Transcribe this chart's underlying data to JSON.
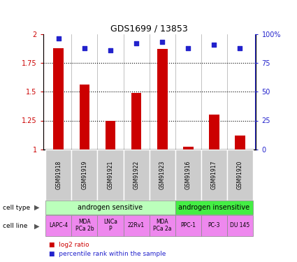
{
  "title": "GDS1699 / 13853",
  "samples": [
    "GSM91918",
    "GSM91919",
    "GSM91921",
    "GSM91922",
    "GSM91923",
    "GSM91916",
    "GSM91917",
    "GSM91920"
  ],
  "log2_ratio": [
    1.88,
    1.56,
    1.25,
    1.49,
    1.87,
    1.02,
    1.3,
    1.12
  ],
  "percentile_rank": [
    96,
    88,
    86,
    92,
    93,
    88,
    91,
    88
  ],
  "ylim_left": [
    1.0,
    2.0
  ],
  "ylim_right": [
    0,
    100
  ],
  "yticks_left": [
    1.0,
    1.25,
    1.5,
    1.75,
    2.0
  ],
  "ytick_labels_left": [
    "1",
    "1.25",
    "1.5",
    "1.75",
    "2"
  ],
  "yticks_right": [
    0,
    25,
    50,
    75,
    100
  ],
  "ytick_labels_right": [
    "0",
    "25",
    "50",
    "75",
    "100%"
  ],
  "bar_color": "#cc0000",
  "square_color": "#2222cc",
  "cell_type_groups": [
    {
      "label": "androgen sensitive",
      "start": 0,
      "end": 4,
      "color": "#bbffbb"
    },
    {
      "label": "androgen insensitive",
      "start": 5,
      "end": 7,
      "color": "#44ee44"
    }
  ],
  "cell_lines": [
    "LAPC-4",
    "MDA\nPCa 2b",
    "LNCa\nP",
    "22Rv1",
    "MDA\nPCa 2a",
    "PPC-1",
    "PC-3",
    "DU 145"
  ],
  "cell_line_color": "#ee88ee",
  "sample_box_color": "#cccccc",
  "legend_red": "log2 ratio",
  "legend_blue": "percentile rank within the sample",
  "cell_type_label": "cell type",
  "cell_line_label": "cell line",
  "left_ylabel_color": "#cc0000",
  "right_ylabel_color": "#2222cc",
  "grid_color": "#444444",
  "bar_width": 0.4
}
